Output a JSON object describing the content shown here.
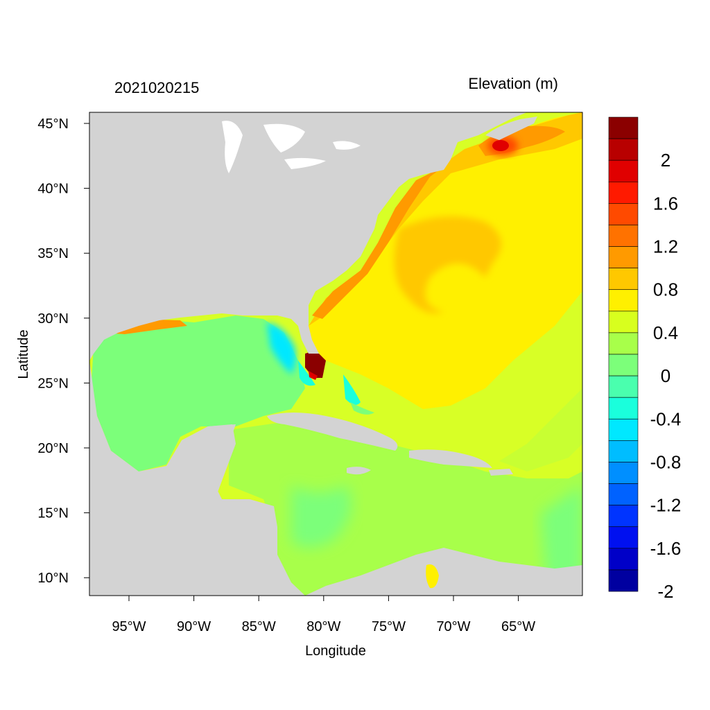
{
  "map": {
    "timestamp": "2021020215",
    "variable_title": "Elevation (m)",
    "xlabel": "Longitude",
    "ylabel": "Latitude",
    "x_ticks": [
      "95°W",
      "90°W",
      "85°W",
      "80°W",
      "75°W",
      "70°W",
      "65°W"
    ],
    "y_ticks": [
      "45°N",
      "40°N",
      "35°N",
      "30°N",
      "25°N",
      "20°N",
      "15°N",
      "10°N"
    ],
    "land_color": "#d3d3d3",
    "colorbar": {
      "labels": [
        "2",
        "1.6",
        "1.2",
        "0.8",
        "0.4",
        "0",
        "-0.4",
        "-0.8",
        "-1.2",
        "-1.6",
        "-2"
      ],
      "colors": [
        "#8b0000",
        "#b80000",
        "#e00000",
        "#ff1a00",
        "#ff4a00",
        "#ff7200",
        "#ff9a00",
        "#ffc800",
        "#fff000",
        "#d8ff1e",
        "#a8ff4a",
        "#7cff7a",
        "#4affae",
        "#1affdc",
        "#00e8ff",
        "#00bdff",
        "#008fff",
        "#0062ff",
        "#0034ff",
        "#0010f0",
        "#0000c8",
        "#0000a0"
      ]
    }
  }
}
